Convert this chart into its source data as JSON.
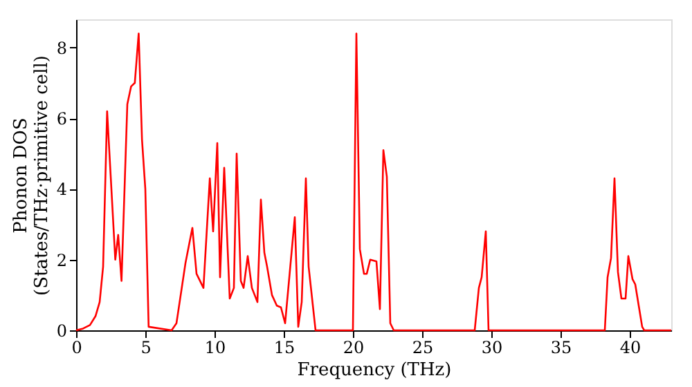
{
  "chart_data": {
    "type": "line",
    "xlabel": "Frequency (THz)",
    "ylabel": "Phonon DOS\n(States/THz·primitive cell)",
    "xlim": [
      0,
      43
    ],
    "ylim": [
      0,
      8.8
    ],
    "xticks": [
      0,
      5,
      10,
      15,
      20,
      25,
      30,
      35,
      40
    ],
    "yticks": [
      0,
      2,
      4,
      6,
      8
    ],
    "grid": false,
    "marker": "none",
    "line_style": "solid",
    "series": [
      {
        "color": "#ff0000",
        "x": [
          0,
          0.5,
          1,
          1.4,
          1.7,
          1.95,
          2.24,
          2.83,
          3.04,
          3.28,
          3.7,
          3.97,
          4.24,
          4.52,
          4.76,
          5.0,
          5.24,
          6.9,
          7.25,
          7.9,
          8.4,
          8.7,
          9.2,
          9.66,
          9.9,
          10.2,
          10.4,
          10.7,
          11.1,
          11.4,
          11.6,
          11.9,
          12.1,
          12.4,
          12.7,
          13.1,
          13.35,
          13.6,
          13.8,
          14.15,
          14.5,
          14.8,
          15.1,
          15.8,
          16.05,
          16.3,
          16.6,
          16.8,
          17.3,
          20.0,
          20.25,
          20.5,
          20.8,
          21.0,
          21.25,
          21.7,
          21.95,
          22.2,
          22.45,
          22.7,
          22.95,
          28.8,
          29.1,
          29.3,
          29.6,
          29.8,
          38.2,
          38.4,
          38.65,
          38.9,
          39.15,
          39.4,
          39.7,
          39.9,
          40.2,
          40.4,
          40.65,
          40.9,
          41.05,
          43
        ],
        "values": [
          0,
          0.05,
          0.15,
          0.4,
          0.8,
          1.8,
          6.2,
          2.0,
          2.7,
          1.4,
          6.4,
          6.9,
          7.0,
          8.4,
          5.4,
          4.0,
          0.1,
          0,
          0.2,
          1.9,
          2.9,
          1.6,
          1.2,
          4.3,
          2.8,
          5.3,
          1.5,
          4.6,
          0.9,
          1.2,
          5.0,
          1.4,
          1.2,
          2.1,
          1.2,
          0.8,
          3.7,
          2.2,
          1.8,
          1.0,
          0.7,
          0.65,
          0.2,
          3.2,
          0.1,
          0.8,
          4.3,
          1.8,
          0,
          0,
          8.4,
          2.3,
          1.6,
          1.6,
          2.0,
          1.95,
          0.6,
          5.1,
          4.35,
          0.2,
          0,
          0,
          1.2,
          1.5,
          2.8,
          0,
          0,
          1.5,
          2.05,
          4.3,
          1.65,
          0.9,
          0.9,
          2.1,
          1.45,
          1.3,
          0.7,
          0.1,
          0,
          0
        ]
      }
    ]
  }
}
